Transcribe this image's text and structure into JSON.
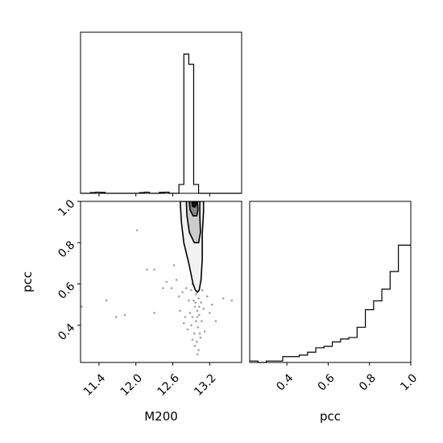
{
  "chart_data": {
    "type": "corner",
    "parameters": [
      "M200",
      "pcc"
    ],
    "axis_labels": {
      "x_bottom_left": "M200",
      "x_bottom_right": "pcc",
      "y_middle_left": "pcc"
    },
    "m200_ticks": [
      {
        "value": 11.4,
        "label": "11.4"
      },
      {
        "value": 12.0,
        "label": "12.0"
      },
      {
        "value": 12.6,
        "label": "12.6"
      },
      {
        "value": 13.2,
        "label": "13.2"
      }
    ],
    "pcc_ticks_bottom": [
      {
        "value": 0.4,
        "label": "0.4"
      },
      {
        "value": 0.6,
        "label": "0.6"
      },
      {
        "value": 0.8,
        "label": "0.8"
      },
      {
        "value": 1.0,
        "label": "1.0"
      }
    ],
    "pcc_ticks_left": [
      {
        "value": 0.4,
        "label": "0.4"
      },
      {
        "value": 0.6,
        "label": "0.6"
      },
      {
        "value": 0.8,
        "label": "0.8"
      },
      {
        "value": 1.0,
        "label": "1.0"
      }
    ],
    "ranges": {
      "m200": [
        11.1,
        13.72
      ],
      "pcc": [
        0.22,
        1.0
      ]
    },
    "hist_m200": {
      "ylim": [
        0,
        1.0
      ],
      "edges": [
        11.1,
        11.18,
        11.26,
        11.34,
        11.42,
        11.5,
        11.58,
        11.66,
        11.74,
        11.82,
        11.9,
        11.98,
        12.06,
        12.14,
        12.22,
        12.3,
        12.38,
        12.46,
        12.54,
        12.62,
        12.7,
        12.78,
        12.86,
        12.94,
        13.02,
        13.1,
        13.18,
        13.26,
        13.34,
        13.42,
        13.5,
        13.58,
        13.66,
        13.72
      ],
      "counts": [
        0,
        0,
        0.005,
        0.008,
        0.006,
        0,
        0,
        0,
        0,
        0,
        0,
        0,
        0.005,
        0.008,
        0,
        0,
        0.006,
        0.008,
        0,
        0,
        0.06,
        0.95,
        0.88,
        0.06,
        0,
        0,
        0,
        0,
        0,
        0,
        0,
        0,
        0
      ]
    },
    "hist_pcc": {
      "ylim": [
        0,
        1.0
      ],
      "edges": [
        0.22,
        0.26,
        0.3,
        0.34,
        0.38,
        0.42,
        0.46,
        0.5,
        0.54,
        0.58,
        0.62,
        0.66,
        0.7,
        0.74,
        0.78,
        0.82,
        0.86,
        0.9,
        0.94,
        0.98,
        1.0
      ],
      "counts": [
        0.01,
        0.0,
        0.01,
        0.01,
        0.04,
        0.04,
        0.05,
        0.07,
        0.1,
        0.11,
        0.14,
        0.16,
        0.17,
        0.24,
        0.36,
        0.42,
        0.5,
        0.62,
        0.8,
        0.8
      ]
    },
    "scatter_points": [
      [
        11.12,
        0.49
      ],
      [
        11.52,
        0.52
      ],
      [
        11.68,
        0.44
      ],
      [
        11.82,
        0.45
      ],
      [
        12.02,
        0.86
      ],
      [
        12.18,
        0.67
      ],
      [
        12.3,
        0.67
      ],
      [
        12.3,
        0.46
      ],
      [
        12.44,
        0.58
      ],
      [
        12.5,
        0.61
      ],
      [
        12.58,
        0.58
      ],
      [
        12.62,
        0.69
      ],
      [
        12.66,
        0.62
      ],
      [
        12.7,
        0.54
      ],
      [
        12.72,
        0.47
      ],
      [
        12.76,
        0.56
      ],
      [
        12.78,
        0.41
      ],
      [
        12.8,
        0.44
      ],
      [
        12.82,
        0.58
      ],
      [
        12.84,
        0.38
      ],
      [
        12.86,
        0.52
      ],
      [
        12.88,
        0.46
      ],
      [
        12.9,
        0.57
      ],
      [
        12.92,
        0.6
      ],
      [
        12.92,
        0.44
      ],
      [
        12.94,
        0.52
      ],
      [
        12.95,
        0.36
      ],
      [
        12.96,
        0.49
      ],
      [
        12.97,
        0.63
      ],
      [
        12.98,
        0.42
      ],
      [
        12.98,
        0.55
      ],
      [
        12.99,
        0.32
      ],
      [
        13.0,
        0.47
      ],
      [
        13.0,
        0.58
      ],
      [
        13.01,
        0.39
      ],
      [
        13.02,
        0.53
      ],
      [
        13.02,
        0.28
      ],
      [
        13.03,
        0.45
      ],
      [
        13.04,
        0.61
      ],
      [
        13.05,
        0.34
      ],
      [
        13.06,
        0.51
      ],
      [
        13.07,
        0.42
      ],
      [
        13.08,
        0.57
      ],
      [
        13.1,
        0.48
      ],
      [
        13.12,
        0.37
      ],
      [
        13.16,
        0.54
      ],
      [
        13.2,
        0.46
      ],
      [
        13.24,
        0.5
      ],
      [
        13.3,
        0.42
      ],
      [
        13.42,
        0.53
      ],
      [
        13.56,
        0.52
      ],
      [
        12.9,
        0.4
      ],
      [
        12.96,
        0.3
      ],
      [
        13.0,
        0.26
      ],
      [
        12.94,
        0.66
      ],
      [
        13.06,
        0.68
      ],
      [
        12.88,
        0.71
      ],
      [
        13.02,
        0.74
      ],
      [
        12.98,
        0.64
      ],
      [
        13.04,
        0.36
      ],
      [
        12.92,
        0.33
      ],
      [
        13.0,
        0.44
      ],
      [
        12.97,
        0.51
      ],
      [
        13.03,
        0.49
      ],
      [
        12.99,
        0.57
      ]
    ],
    "contours": [
      {
        "level": "outer",
        "fill": "#f2f2f2",
        "points": [
          [
            12.72,
            1.0
          ],
          [
            12.74,
            0.9
          ],
          [
            12.78,
            0.8
          ],
          [
            12.86,
            0.7
          ],
          [
            12.93,
            0.6
          ],
          [
            12.97,
            0.57
          ],
          [
            13.0,
            0.56
          ],
          [
            13.03,
            0.57
          ],
          [
            13.06,
            0.62
          ],
          [
            13.08,
            0.72
          ],
          [
            13.08,
            0.84
          ],
          [
            13.1,
            0.95
          ],
          [
            13.1,
            1.0
          ]
        ]
      },
      {
        "level": "middle",
        "fill": "#cccccc",
        "points": [
          [
            12.82,
            1.0
          ],
          [
            12.83,
            0.93
          ],
          [
            12.87,
            0.85
          ],
          [
            12.95,
            0.8
          ],
          [
            13.02,
            0.8
          ],
          [
            13.05,
            0.85
          ],
          [
            13.04,
            0.93
          ],
          [
            13.04,
            1.0
          ]
        ]
      },
      {
        "level": "inner",
        "fill": "#888888",
        "points": [
          [
            12.87,
            1.0
          ],
          [
            12.88,
            0.96
          ],
          [
            12.93,
            0.93
          ],
          [
            12.99,
            0.93
          ],
          [
            13.01,
            0.96
          ],
          [
            13.0,
            1.0
          ]
        ]
      },
      {
        "level": "core",
        "fill": "#111111",
        "points": [
          [
            12.91,
            1.0
          ],
          [
            12.92,
            0.976
          ],
          [
            12.96,
            0.972
          ],
          [
            12.98,
            0.985
          ],
          [
            12.98,
            1.0
          ]
        ]
      }
    ]
  }
}
